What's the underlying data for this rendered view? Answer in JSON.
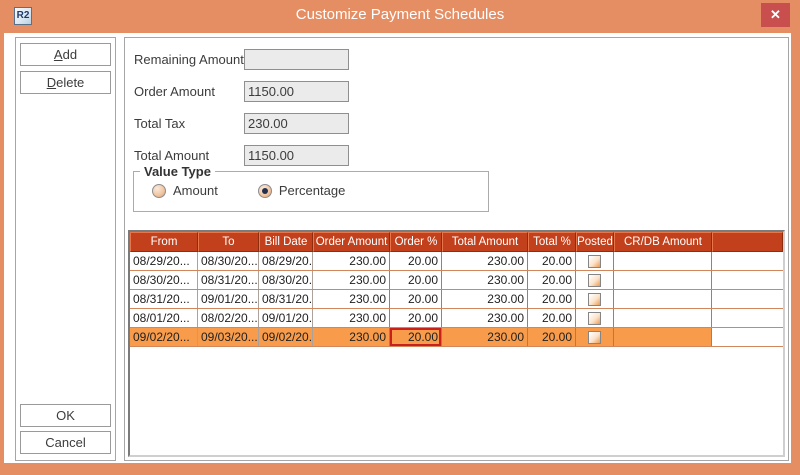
{
  "window": {
    "title": "Customize Payment Schedules",
    "logo_text": "R2",
    "close_glyph": "✕"
  },
  "sidebar": {
    "add_label": "Add",
    "delete_label": "Delete",
    "ok_label": "OK",
    "cancel_label": "Cancel"
  },
  "form": {
    "fields": [
      {
        "label": "Remaining Amount",
        "value": ""
      },
      {
        "label": "Order Amount",
        "value": "1150.00"
      },
      {
        "label": "Total Tax",
        "value": "230.00"
      },
      {
        "label": "Total Amount",
        "value": "1150.00"
      }
    ]
  },
  "value_type": {
    "legend": "Value Type",
    "options": [
      {
        "label": "Amount",
        "selected": false
      },
      {
        "label": "Percentage",
        "selected": true
      }
    ]
  },
  "table": {
    "columns": [
      "From",
      "To",
      "Bill Date",
      "Order Amount",
      "Order %",
      "Total Amount",
      "Total %",
      "Posted",
      "CR/DB Amount"
    ],
    "rows": [
      {
        "from": "08/29/20...",
        "to": "08/30/20...",
        "bill_date": "08/29/20...",
        "order_amount": "230.00",
        "order_pct": "20.00",
        "total_amount": "230.00",
        "total_pct": "20.00",
        "posted": false,
        "crdb_amount": ""
      },
      {
        "from": "08/30/20...",
        "to": "08/31/20...",
        "bill_date": "08/30/20...",
        "order_amount": "230.00",
        "order_pct": "20.00",
        "total_amount": "230.00",
        "total_pct": "20.00",
        "posted": false,
        "crdb_amount": ""
      },
      {
        "from": "08/31/20...",
        "to": "09/01/20...",
        "bill_date": "08/31/20...",
        "order_amount": "230.00",
        "order_pct": "20.00",
        "total_amount": "230.00",
        "total_pct": "20.00",
        "posted": false,
        "crdb_amount": ""
      },
      {
        "from": "08/01/20...",
        "to": "08/02/20...",
        "bill_date": "09/01/20...",
        "order_amount": "230.00",
        "order_pct": "20.00",
        "total_amount": "230.00",
        "total_pct": "20.00",
        "posted": false,
        "crdb_amount": ""
      },
      {
        "from": "09/02/20...",
        "to": "09/03/20...",
        "bill_date": "09/02/20...",
        "order_amount": "230.00",
        "order_pct": "20.00",
        "total_amount": "230.00",
        "total_pct": "20.00",
        "posted": false,
        "crdb_amount": ""
      }
    ],
    "selected_row_index": 4,
    "focused_cell": {
      "row": 4,
      "column": "Order %"
    }
  },
  "colors": {
    "titlebar": "#E58D63",
    "close_button": "#C94E4E",
    "grid_header": "#C2411C",
    "selected_row": "#F89C4B",
    "focus_border": "#C8201D"
  }
}
